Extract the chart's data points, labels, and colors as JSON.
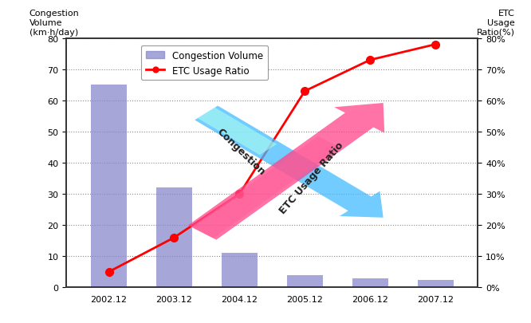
{
  "years": [
    "2002.12",
    "2003.12",
    "2004.12",
    "2005.12",
    "2006.12",
    "2007.12"
  ],
  "congestion_volumes": [
    65,
    32,
    11,
    4,
    3,
    2.5
  ],
  "etc_usage_ratios": [
    5,
    16,
    30,
    63,
    73,
    78
  ],
  "bar_color": "#8888cc",
  "line_color": "#ff0000",
  "marker_color": "#ff0000",
  "ylim_left": [
    0,
    80
  ],
  "ylim_right": [
    0,
    80
  ],
  "yticks": [
    0,
    10,
    20,
    30,
    40,
    50,
    60,
    70,
    80
  ],
  "ytick_labels_left": [
    "0",
    "10",
    "20",
    "30",
    "40",
    "50",
    "60",
    "70",
    "80"
  ],
  "ytick_labels_right": [
    "0%",
    "10%",
    "20%",
    "30%",
    "40%",
    "50%",
    "60%",
    "70%",
    "80%"
  ],
  "legend_bar_label": "Congestion Volume",
  "legend_line_label": "ETC Usage Ratio",
  "background_color": "#ffffff",
  "grid_color": "#888888",
  "border_color": "#333333",
  "pink_arrow_color": "#ff4488",
  "cyan_arrow_color": "#44bbff"
}
